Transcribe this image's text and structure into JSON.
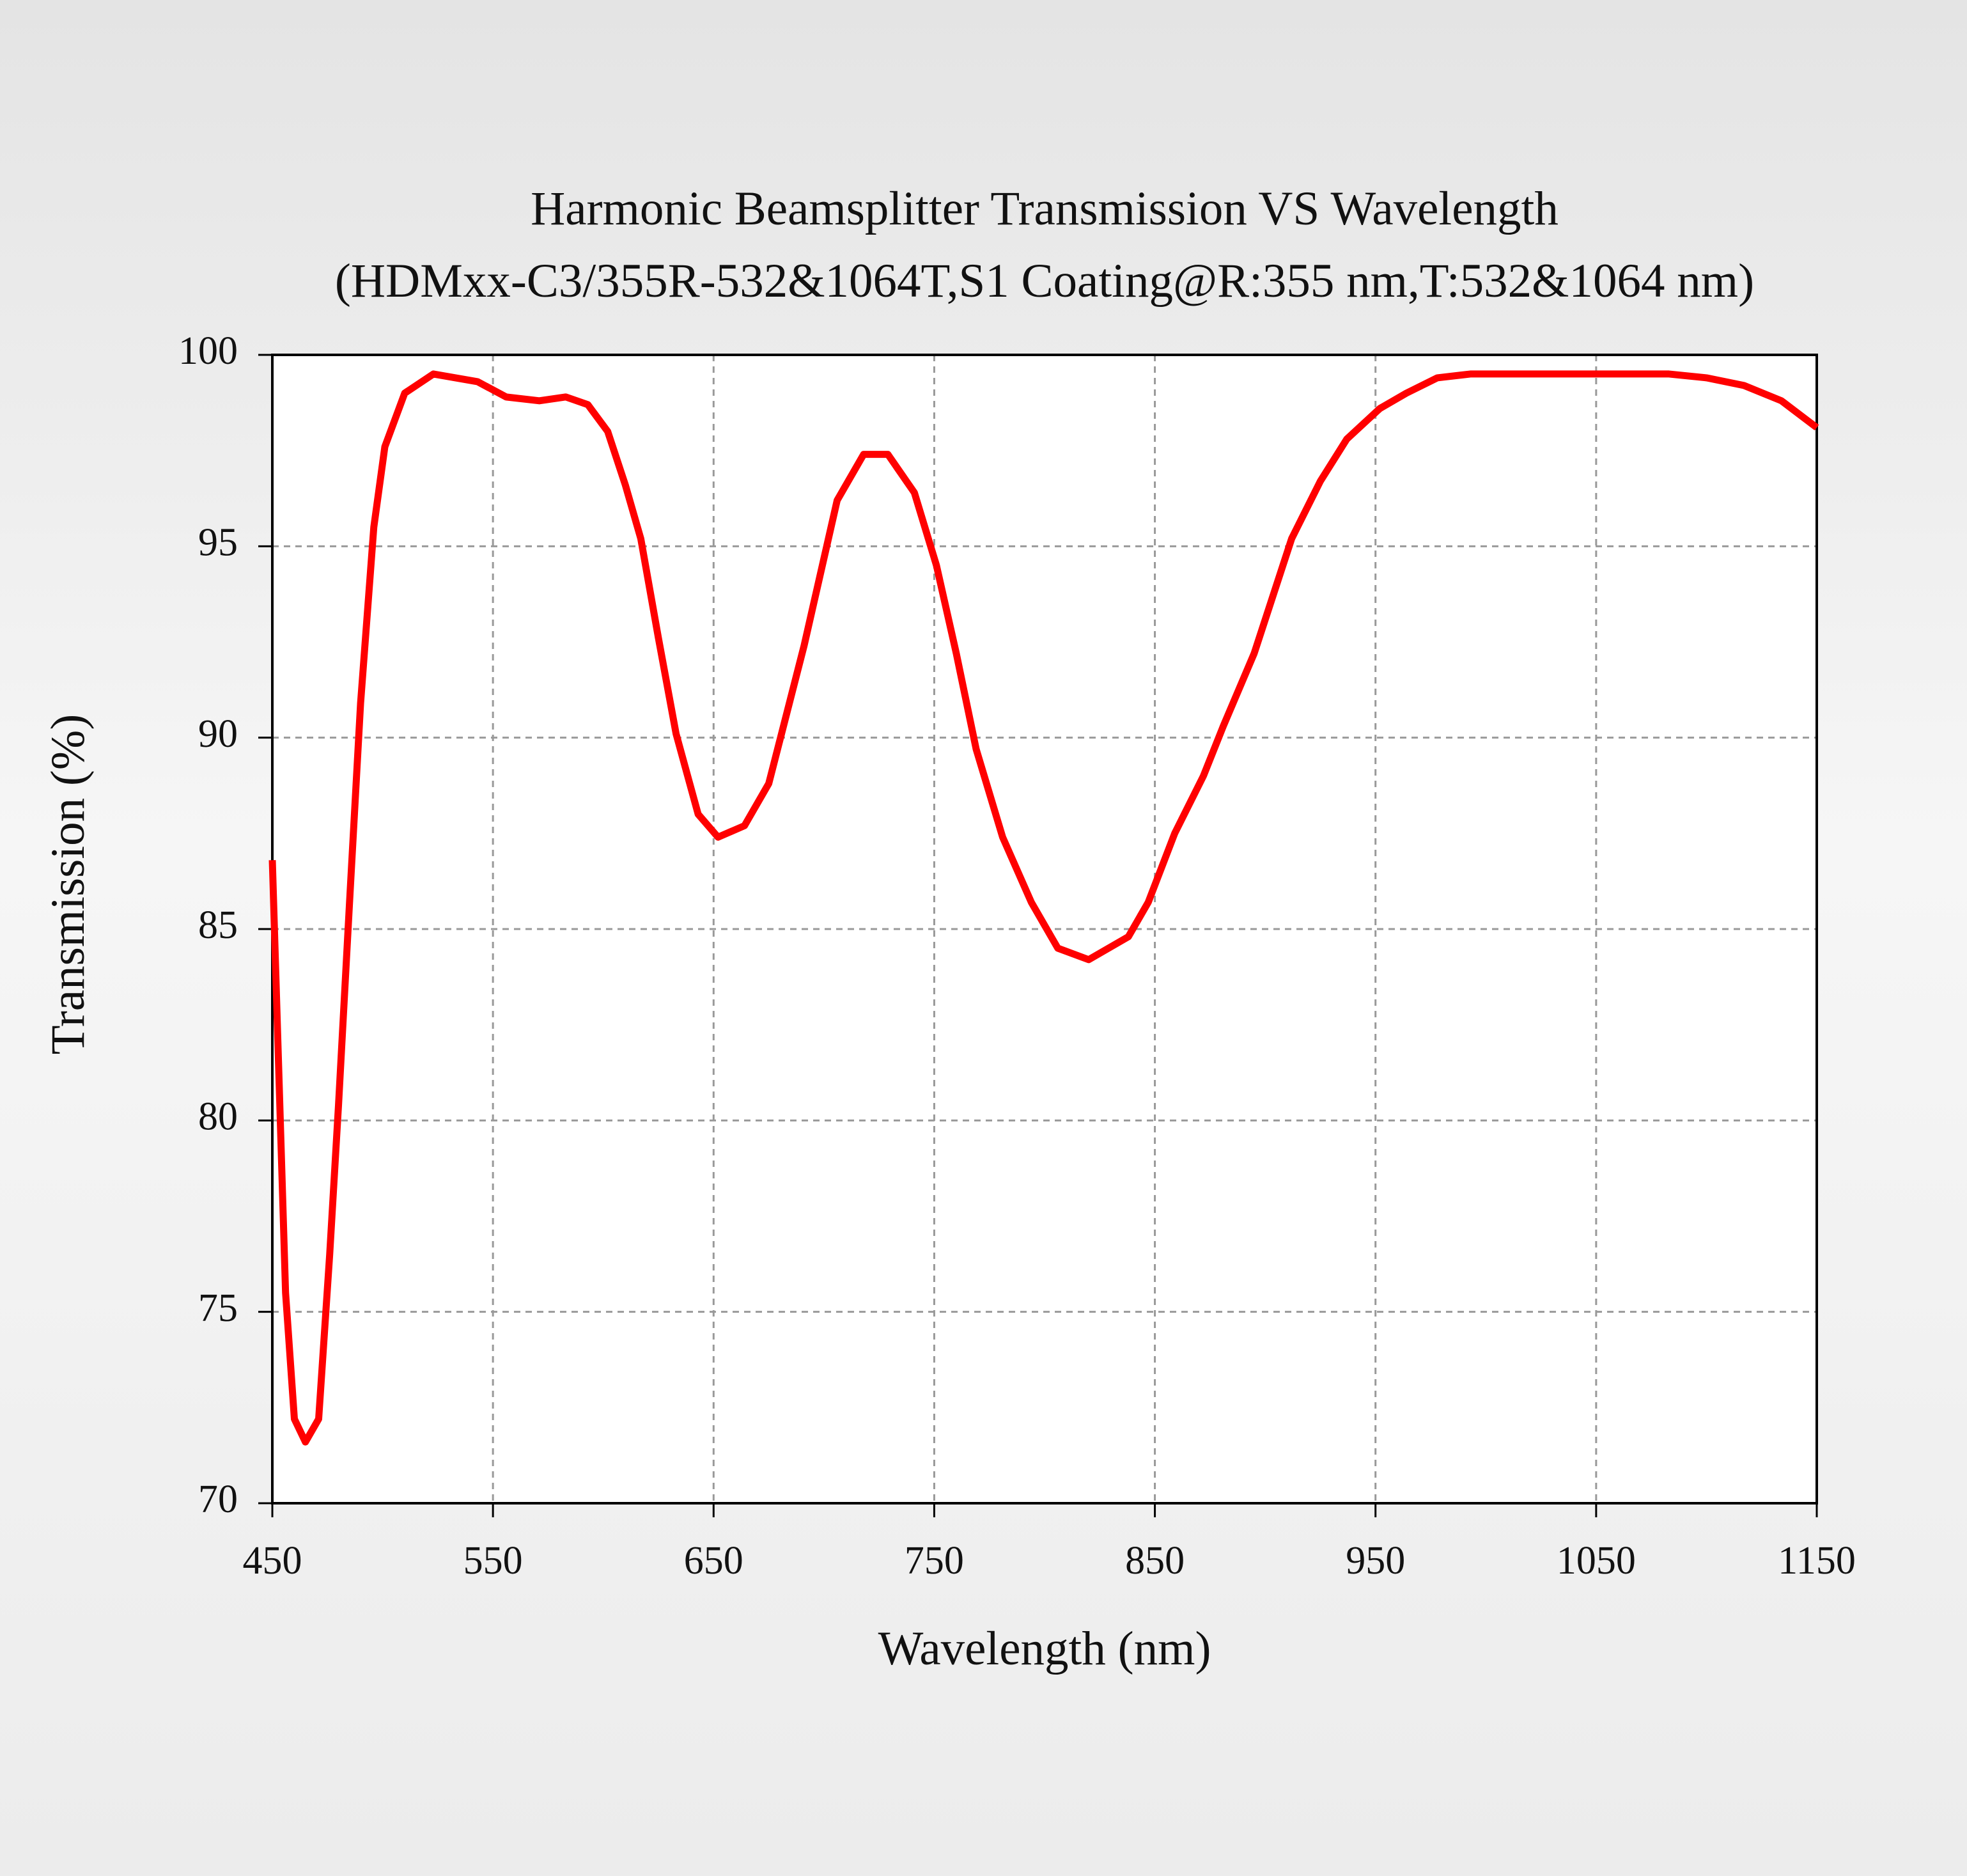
{
  "chart_data": {
    "type": "line",
    "title": "Harmonic Beamsplitter Transmission VS Wavelength",
    "subtitle": "(HDMxx-C3/355R-532&1064T,S1 Coating@R:355 nm,T:532&1064 nm)",
    "x_label": "Wavelength (nm)",
    "y_label": "Transmission (%)",
    "x": [
      450,
      456,
      460,
      465,
      471,
      476,
      480,
      485,
      490,
      496,
      501,
      510,
      523,
      543,
      556,
      571,
      583,
      593,
      602,
      610,
      617,
      625,
      633,
      643,
      652,
      664,
      675,
      691,
      706,
      718,
      729,
      741,
      751,
      760,
      769,
      781,
      794,
      806,
      820,
      838,
      847,
      859,
      872,
      881,
      895,
      912,
      925,
      937,
      952,
      964,
      978,
      993,
      1009,
      1049,
      1083,
      1100,
      1117,
      1134,
      1150
    ],
    "series": [
      {
        "name": "Transmission",
        "color": "#ff0000",
        "values": [
          86.8,
          75.5,
          72.2,
          71.6,
          72.2,
          76.5,
          80.4,
          85.7,
          90.9,
          95.5,
          97.6,
          99.0,
          99.5,
          99.3,
          98.9,
          98.8,
          98.9,
          98.7,
          98.0,
          96.6,
          95.2,
          92.6,
          90.1,
          88.0,
          87.4,
          87.7,
          88.8,
          92.4,
          96.2,
          97.4,
          97.4,
          96.4,
          94.5,
          92.2,
          89.7,
          87.4,
          85.7,
          84.5,
          84.2,
          84.8,
          85.7,
          87.5,
          89.0,
          90.3,
          92.2,
          95.2,
          96.7,
          97.8,
          98.6,
          99.0,
          99.4,
          99.5,
          99.5,
          99.5,
          99.5,
          99.4,
          99.2,
          98.8,
          98.1
        ]
      }
    ],
    "xlim": [
      450,
      1150
    ],
    "xticks": [
      450,
      550,
      650,
      750,
      850,
      950,
      1050,
      1150
    ],
    "ylim": [
      70,
      100
    ],
    "yticks": [
      70,
      75,
      80,
      85,
      90,
      95,
      100
    ],
    "grid": true
  }
}
